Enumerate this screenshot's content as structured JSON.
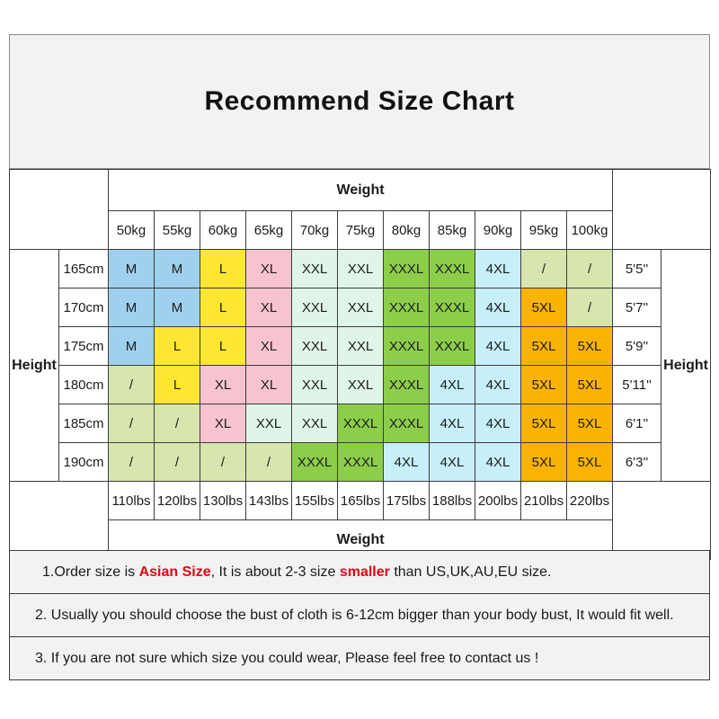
{
  "title": "Recommend Size Chart",
  "colors": {
    "panel_background": "#f2f2f2",
    "accent_red": "#e60012",
    "border": "#3c3c3c"
  },
  "chart_data": {
    "type": "table",
    "title": "Recommend Size Chart",
    "weight_label": "Weight",
    "height_label": "Height",
    "kg_labels": [
      "50kg",
      "55kg",
      "60kg",
      "65kg",
      "70kg",
      "75kg",
      "80kg",
      "85kg",
      "90kg",
      "95kg",
      "100kg"
    ],
    "lbs_labels": [
      "110lbs",
      "120lbs",
      "130lbs",
      "143lbs",
      "155lbs",
      "165lbs",
      "175lbs",
      "188lbs",
      "200lbs",
      "210lbs",
      "220lbs"
    ],
    "rows": [
      {
        "cm": "165cm",
        "ft": "5'5''",
        "sizes": [
          "M",
          "M",
          "L",
          "XL",
          "XXL",
          "XXL",
          "XXXL",
          "XXXL",
          "4XL",
          "/",
          "/"
        ]
      },
      {
        "cm": "170cm",
        "ft": "5'7''",
        "sizes": [
          "M",
          "M",
          "L",
          "XL",
          "XXL",
          "XXL",
          "XXXL",
          "XXXL",
          "4XL",
          "5XL",
          "/"
        ]
      },
      {
        "cm": "175cm",
        "ft": "5'9''",
        "sizes": [
          "M",
          "L",
          "L",
          "XL",
          "XXL",
          "XXL",
          "XXXL",
          "XXXL",
          "4XL",
          "5XL",
          "5XL"
        ]
      },
      {
        "cm": "180cm",
        "ft": "5'11''",
        "sizes": [
          "/",
          "L",
          "XL",
          "XL",
          "XXL",
          "XXL",
          "XXXL",
          "4XL",
          "4XL",
          "5XL",
          "5XL"
        ]
      },
      {
        "cm": "185cm",
        "ft": "6'1''",
        "sizes": [
          "/",
          "/",
          "XL",
          "XXL",
          "XXL",
          "XXXL",
          "XXXL",
          "4XL",
          "4XL",
          "5XL",
          "5XL"
        ]
      },
      {
        "cm": "190cm",
        "ft": "6'3''",
        "sizes": [
          "/",
          "/",
          "/",
          "/",
          "XXXL",
          "XXXL",
          "4XL",
          "4XL",
          "4XL",
          "5XL",
          "5XL"
        ]
      }
    ],
    "size_colors": {
      "M": "#9fd0ee",
      "L": "#ffe632",
      "XL": "#f8c3d0",
      "XXL": "#dff5e8",
      "XXXL": "#8cce4a",
      "4XL": "#c6effa",
      "5XL": "#fbb303",
      "/": "#d7e5af"
    }
  },
  "notes": [
    {
      "parts": [
        {
          "text": "1.Order size is ",
          "red": false
        },
        {
          "text": "Asian Size",
          "red": true
        },
        {
          "text": ", It is about 2-3 size ",
          "red": false
        },
        {
          "text": "smaller",
          "red": true
        },
        {
          "text": " than US,UK,AU,EU size.",
          "red": false
        }
      ]
    },
    {
      "parts": [
        {
          "text": "2. Usually you should choose the bust of cloth is 6-12cm bigger than your body bust, It would fit well.",
          "red": false
        }
      ]
    },
    {
      "parts": [
        {
          "text": "3. If you are not sure which size you could wear, Please feel free to contact us !",
          "red": false
        }
      ]
    }
  ]
}
